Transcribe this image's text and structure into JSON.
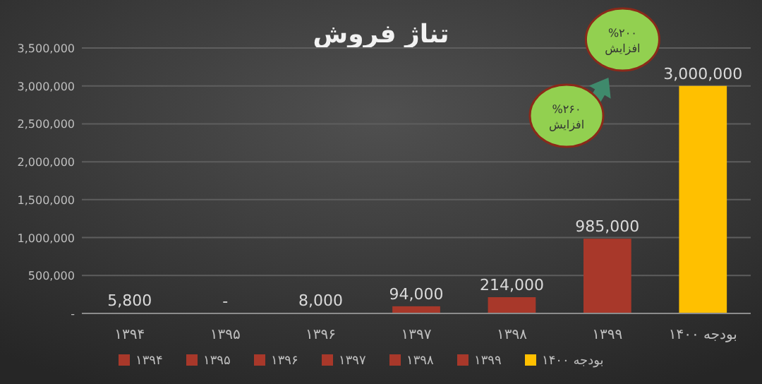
{
  "chart_data": {
    "type": "bar",
    "title": "تناژ فروش",
    "stacked": true,
    "categories": [
      "۱۳۹۴",
      "۱۳۹۵",
      "۱۳۹۶",
      "۱۳۹۷",
      "۱۳۹۸",
      "۱۳۹۹",
      "بودجه ۱۴۰۰"
    ],
    "series": [
      {
        "name": "۱۳۹۴",
        "color": "#a8382a",
        "values": [
          5800,
          null,
          null,
          null,
          null,
          null,
          null
        ],
        "value_labels": [
          "5,800",
          null,
          null,
          null,
          null,
          null,
          null
        ]
      },
      {
        "name": "۱۳۹۵",
        "color": "#a8382a",
        "values": [
          null,
          0,
          null,
          null,
          null,
          null,
          null
        ],
        "value_labels": [
          null,
          "-",
          null,
          null,
          null,
          null,
          null
        ]
      },
      {
        "name": "۱۳۹۶",
        "color": "#a8382a",
        "values": [
          null,
          null,
          8000,
          null,
          null,
          null,
          null
        ],
        "value_labels": [
          null,
          null,
          "8,000",
          null,
          null,
          null,
          null
        ]
      },
      {
        "name": "۱۳۹۷",
        "color": "#a8382a",
        "values": [
          null,
          null,
          null,
          94000,
          null,
          null,
          null
        ],
        "value_labels": [
          null,
          null,
          null,
          "94,000",
          null,
          null,
          null
        ]
      },
      {
        "name": "۱۳۹۸",
        "color": "#a8382a",
        "values": [
          null,
          null,
          null,
          null,
          214000,
          null,
          null
        ],
        "value_labels": [
          null,
          null,
          null,
          null,
          "214,000",
          null,
          null
        ]
      },
      {
        "name": "۱۳۹۹",
        "color": "#a8382a",
        "values": [
          null,
          null,
          null,
          null,
          null,
          985000,
          null
        ],
        "value_labels": [
          null,
          null,
          null,
          null,
          null,
          "985,000",
          null
        ]
      },
      {
        "name": "بودجه ۱۴۰۰",
        "color": "#ffc000",
        "values": [
          null,
          null,
          null,
          null,
          null,
          null,
          3000000
        ],
        "value_labels": [
          null,
          null,
          null,
          null,
          null,
          null,
          "3,000,000"
        ]
      }
    ],
    "ylim": [
      0,
      3500000
    ],
    "yticks": [
      {
        "value": 0,
        "label": "-"
      },
      {
        "value": 500000,
        "label": "500,000"
      },
      {
        "value": 1000000,
        "label": "1,000,000"
      },
      {
        "value": 1500000,
        "label": "1,500,000"
      },
      {
        "value": 2000000,
        "label": "2,000,000"
      },
      {
        "value": 2500000,
        "label": "2,500,000"
      },
      {
        "value": 3000000,
        "label": "3,000,000"
      },
      {
        "value": 3500000,
        "label": "3,500,000"
      }
    ],
    "grid": "y",
    "legend": "bottom",
    "annotations": [
      "%۲۶۰ افزایش",
      "%۲۰۰ افزایش"
    ]
  }
}
